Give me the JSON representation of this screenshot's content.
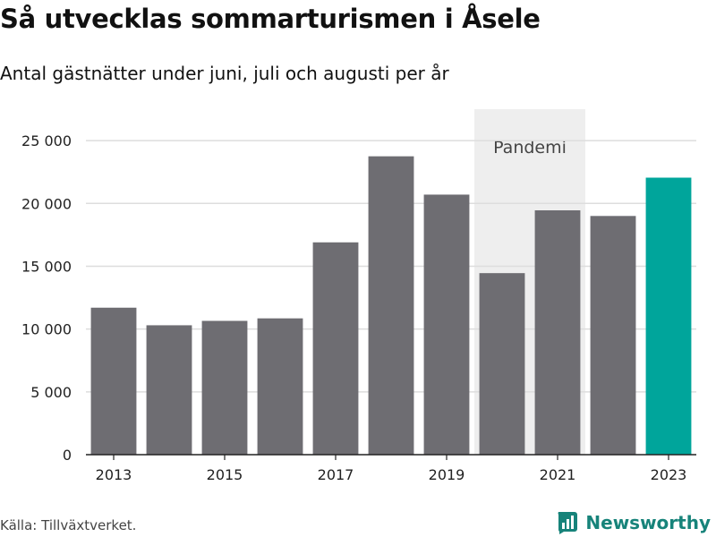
{
  "header": {
    "title": "Så utvecklas sommarturismen i Åsele",
    "subtitle": "Antal gästnätter under juni, juli och augusti per år"
  },
  "footer": {
    "source": "Källa: Tillväxtverket.",
    "brand": "Newsworthy"
  },
  "colors": {
    "bar": "#6e6d72",
    "highlight": "#00a59b",
    "shade": "#eeeeee",
    "grid": "#dddddd",
    "brand": "#17837a"
  },
  "chart_data": {
    "type": "bar",
    "title": "Så utvecklas sommarturismen i Åsele",
    "subtitle": "Antal gästnätter under juni, juli och augusti per år",
    "xlabel": "",
    "ylabel": "",
    "categories": [
      "2013",
      "2014",
      "2015",
      "2016",
      "2017",
      "2018",
      "2019",
      "2020",
      "2021",
      "2022",
      "2023"
    ],
    "values": [
      11700,
      10300,
      10650,
      10850,
      16900,
      23750,
      20700,
      14450,
      19450,
      19000,
      22050
    ],
    "highlight_category": "2023",
    "ylim": [
      0,
      27500
    ],
    "yticks": [
      0,
      5000,
      10000,
      15000,
      20000,
      25000
    ],
    "ytick_labels": [
      "0",
      "5 000",
      "10 000",
      "15 000",
      "20 000",
      "25 000"
    ],
    "xtick_labels": [
      "2013",
      "2015",
      "2017",
      "2019",
      "2021",
      "2023"
    ],
    "grid": true,
    "legend": "none",
    "annotations": [
      {
        "label": "Pandemi",
        "from_category": "2020",
        "to_category": "2021"
      }
    ]
  }
}
